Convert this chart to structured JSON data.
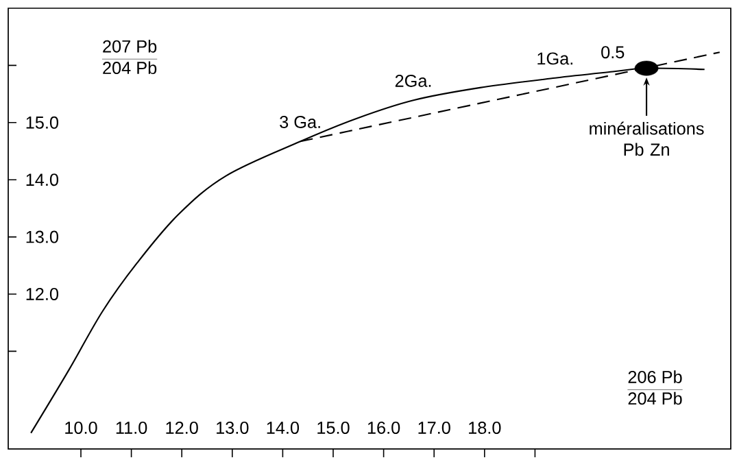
{
  "chart_data": {
    "type": "line",
    "xlabel": "\\frac{\\mathrm{206\\ Pb}}{\\mathrm{204\\ Pb}}",
    "ylabel": "\\frac{\\mathrm{207\\ Pb}}{\\mathrm{204\\ Pb}}",
    "xlim": [
      8.56,
      22.88
    ],
    "ylim": [
      9.29,
      17.0
    ],
    "xticks": [
      {
        "value": 10,
        "label": "10.0"
      },
      {
        "value": 11,
        "label": "11.0"
      },
      {
        "value": 12,
        "label": "12.0"
      },
      {
        "value": 13,
        "label": "13.0"
      },
      {
        "value": 14,
        "label": "14.0"
      },
      {
        "value": 15,
        "label": "15.0"
      },
      {
        "value": 16,
        "label": "16.0"
      },
      {
        "value": 17,
        "label": "17.0"
      },
      {
        "value": 18,
        "label": "18.0"
      },
      {
        "value": 19,
        "label": null
      }
    ],
    "yticks": [
      {
        "value": 11,
        "label": null
      },
      {
        "value": 12,
        "label": "12.0"
      },
      {
        "value": 13,
        "label": "13.0"
      },
      {
        "value": 14,
        "label": "14.0"
      },
      {
        "value": 15,
        "label": "15.0"
      },
      {
        "value": 16,
        "label": null
      }
    ],
    "series": [
      {
        "color": "#000000",
        "line_style": "solid",
        "x": [
          9.01,
          9.76,
          10.43,
          11.11,
          11.93,
          12.88,
          14.35,
          15.46,
          16.59,
          17.91,
          19.4,
          20.54,
          21.21,
          22.36
        ],
        "values": [
          9.57,
          10.67,
          11.7,
          12.54,
          13.39,
          14.07,
          14.67,
          15.07,
          15.39,
          15.61,
          15.78,
          15.89,
          15.95,
          15.93
        ]
      },
      {
        "color": "#000000",
        "line_style": "dashed",
        "x": [
          14.35,
          22.66
        ],
        "values": [
          14.67,
          16.23
        ]
      },
      {
        "type": "scatter",
        "color": "#000000",
        "marker": "circle",
        "x": [
          21.21
        ],
        "values": [
          15.95
        ]
      }
    ],
    "annotations": [
      {
        "text": "3 Ga.",
        "x": 14.35,
        "y": 14.67
      },
      {
        "text": "2Ga.",
        "x": 16.59,
        "y": 15.39
      },
      {
        "text": "1Ga.",
        "x": 19.4,
        "y": 15.78
      },
      {
        "text": "0.5",
        "x": 20.54,
        "y": 15.89
      },
      "minéralisations Pb Zn"
    ]
  }
}
